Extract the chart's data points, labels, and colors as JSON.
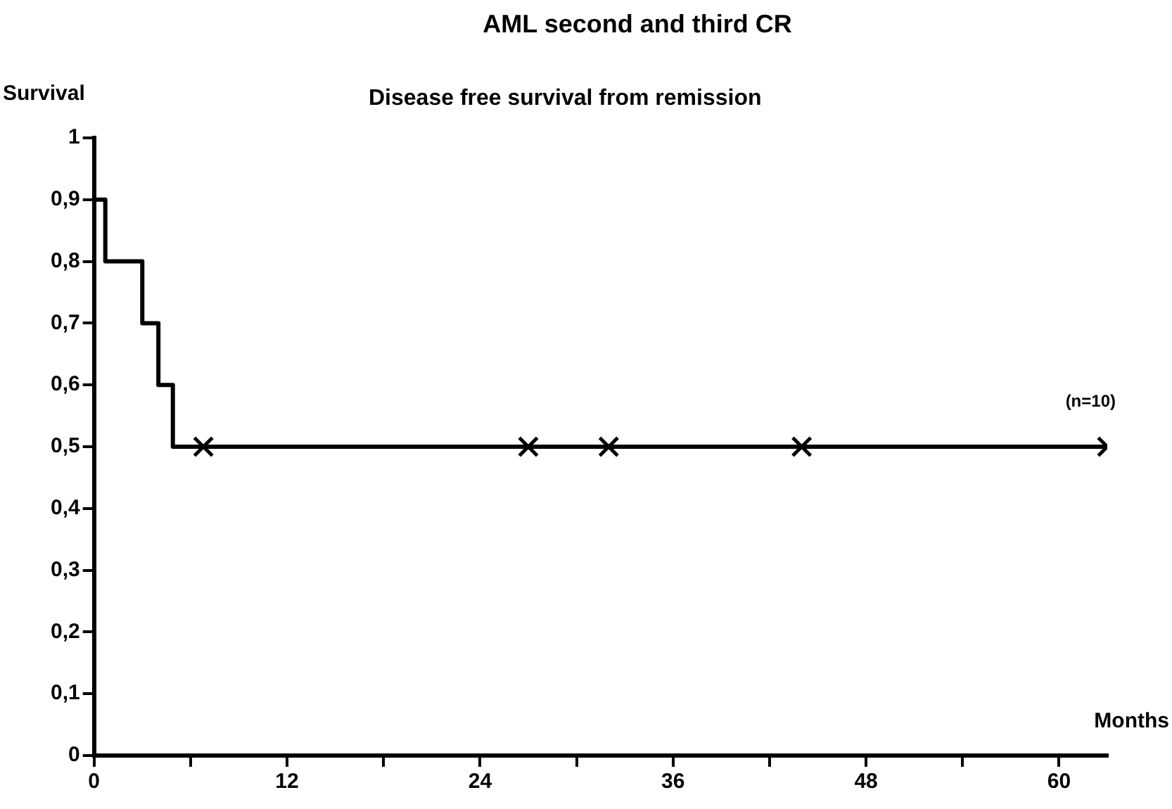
{
  "chart_data": {
    "type": "step",
    "title": "AML second and third CR",
    "subtitle": "Disease free survival from remission",
    "xlabel": "Months",
    "ylabel": "Survival",
    "series": [
      {
        "color": "#000000",
        "x": [
          0,
          0.7,
          3,
          4,
          4.9,
          5.9,
          63
        ],
        "values": [
          1,
          0.9,
          0.8,
          0.7,
          0.6,
          0.5,
          0.5
        ]
      },
      {
        "type": "scatter",
        "marker": "cross",
        "color": "#000000",
        "x": [
          6.8,
          27,
          32,
          44,
          63
        ],
        "values": [
          0.5,
          0.5,
          0.5,
          0.5,
          0.5
        ]
      }
    ],
    "xlim": [
      0,
      63
    ],
    "xticks": [
      0,
      {
        "value": 6,
        "label": null
      },
      12,
      {
        "value": 18,
        "label": null
      },
      24,
      {
        "value": 30,
        "label": null
      },
      36,
      {
        "value": 42,
        "label": null
      },
      48,
      {
        "value": 54,
        "label": null
      },
      60
    ],
    "ylim": [
      0,
      1
    ],
    "yticks": [
      0,
      {
        "value": 0.1,
        "label": "0,1"
      },
      {
        "value": 0.2,
        "label": "0,2"
      },
      {
        "value": 0.3,
        "label": "0,3"
      },
      {
        "value": 0.4,
        "label": "0,4"
      },
      {
        "value": 0.5,
        "label": "0,5"
      },
      {
        "value": 0.6,
        "label": "0,6"
      },
      {
        "value": 0.7,
        "label": "0,7"
      },
      {
        "value": 0.8,
        "label": "0,8"
      },
      {
        "value": 0.9,
        "label": "0,9"
      },
      1
    ],
    "annotations": [
      "(n=10)"
    ],
    "grid": false,
    "legend": false
  }
}
